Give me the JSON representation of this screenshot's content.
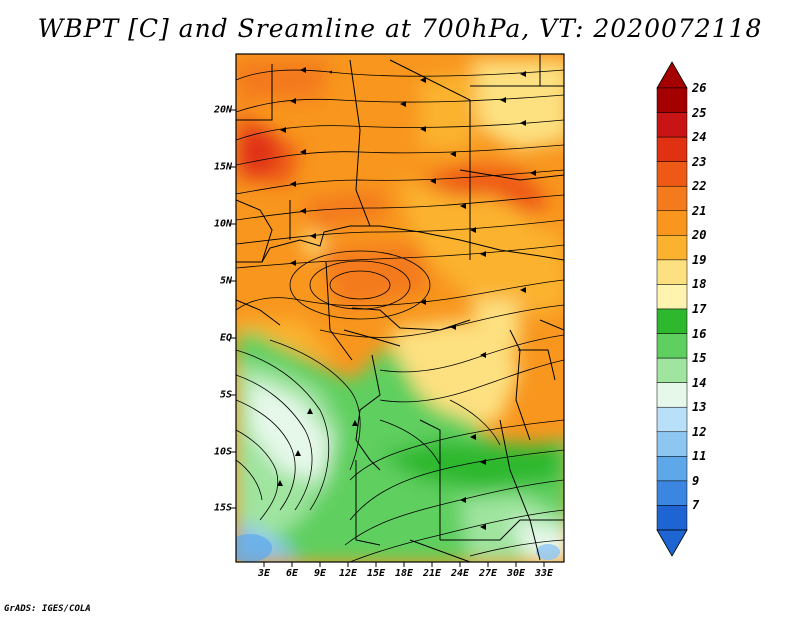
{
  "title": "WBPT [C] and Sreamline at 700hPa, VT: 2020072118",
  "lat_labels": [
    "20N",
    "15N",
    "10N",
    "5N",
    "EQ",
    "5S",
    "10S",
    "15S"
  ],
  "lon_labels": [
    "3E",
    "6E",
    "9E",
    "12E",
    "15E",
    "18E",
    "21E",
    "24E",
    "27E",
    "30E",
    "33E"
  ],
  "colorbar": {
    "labels": [
      "26",
      "25",
      "24",
      "23",
      "22",
      "21",
      "20",
      "19",
      "18",
      "17",
      "16",
      "15",
      "14",
      "13",
      "12",
      "11",
      "9",
      "7"
    ],
    "colors": [
      "#a50000",
      "#c81414",
      "#e03212",
      "#ee5a16",
      "#f47a1e",
      "#f8961e",
      "#fbb22e",
      "#fde080",
      "#fff3b0",
      "#2eb82e",
      "#5fcf5f",
      "#9fe49f",
      "#e6f8ea",
      "#b8e0f8",
      "#8ec6f2",
      "#5ea8ea",
      "#3a86e0",
      "#1e64d2"
    ]
  },
  "footer": "GrADS: IGES/COLA"
}
